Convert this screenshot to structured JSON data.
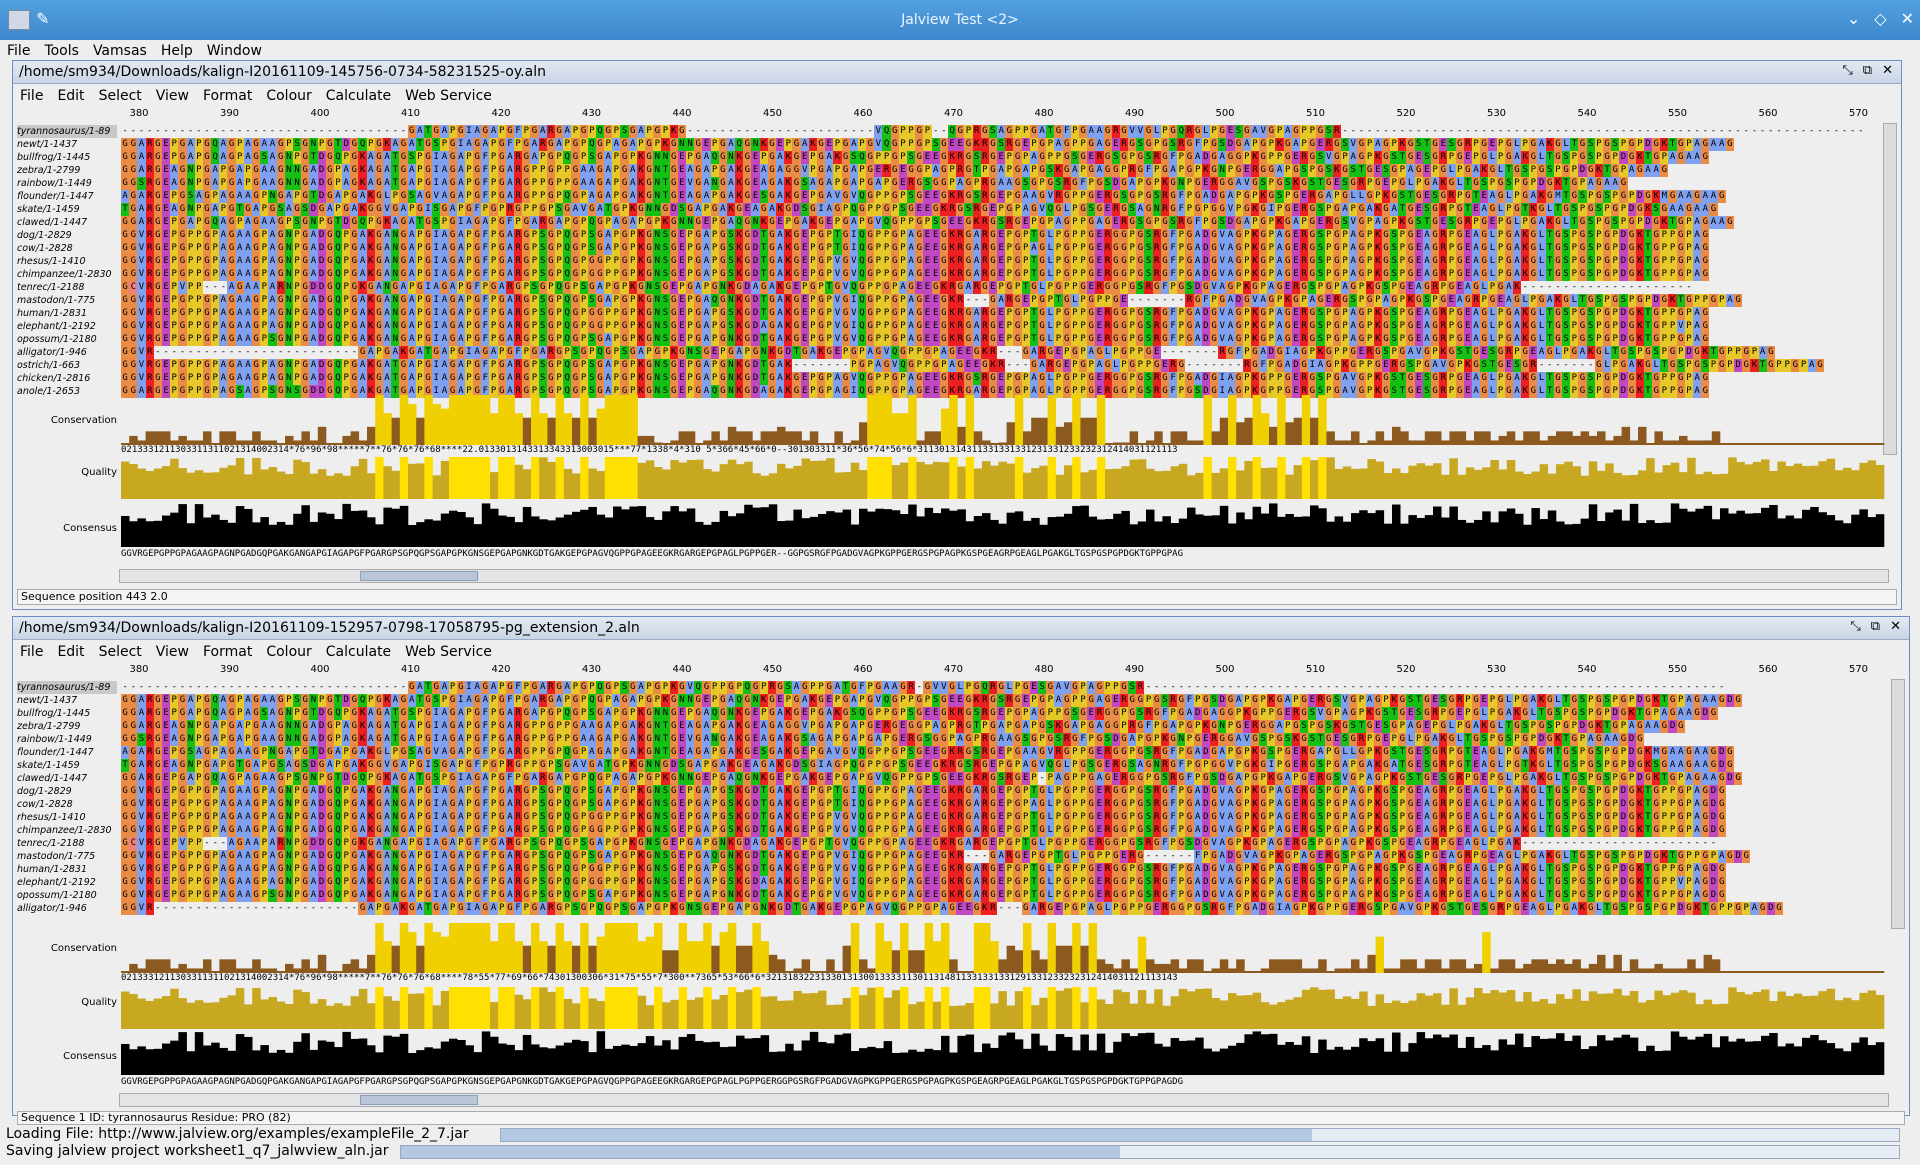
{
  "window": {
    "title": "Jalview Test <2>"
  },
  "menubar": [
    "File",
    "Tools",
    "Vamsas",
    "Help",
    "Window"
  ],
  "frame_menu": [
    "File",
    "Edit",
    "Select",
    "View",
    "Format",
    "Colour",
    "Calculate",
    "Web Service"
  ],
  "ruler_ticks": [
    "380",
    "390",
    "400",
    "410",
    "420",
    "430",
    "440",
    "450",
    "460",
    "470",
    "480",
    "490",
    "500",
    "510",
    "520",
    "530",
    "540",
    "550",
    "560",
    "570"
  ],
  "annotation_labels": {
    "conservation": "Conservation",
    "quality": "Quality",
    "consensus": "Consensus"
  },
  "colors": {
    "G": "#eb8c46",
    "P": "#e6c828",
    "A": "#80a0f0",
    "R": "#ec2020",
    "K": "#ec2020",
    "E": "#c048c0",
    "D": "#c048c0",
    "N": "#15c015",
    "Q": "#15c015",
    "S": "#15c015",
    "T": "#15c015",
    "V": "#80a0f0",
    "I": "#80a0f0",
    "L": "#80a0f0",
    "M": "#80a0f0",
    "F": "#80a0f0",
    "C": "#f08080",
    "H": "#15a4a4",
    "Y": "#15a4a4",
    "W": "#80a0f0"
  },
  "panel1": {
    "path": "/home/sm934/Downloads/kalign-I20161109-145756-0734-58231525-oy.aln",
    "names": [
      "tyrannosaurus/1-89",
      "newt/1-1437",
      "bullfrog/1-1445",
      "zebra/1-2799",
      "rainbow/1-1449",
      "flounder/1-1447",
      "skate/1-1459",
      "clawed/1-1447",
      "dog/1-2829",
      "cow/1-2828",
      "rhesus/1-1410",
      "chimpanzee/1-2830",
      "tenrec/1-2188",
      "mastodon/1-775",
      "human/1-2831",
      "elephant/1-2192",
      "opossum/1-2180",
      "alligator/1-946",
      "ostrich/1-663",
      "chicken/1-2816",
      "anole/1-2653"
    ],
    "sequences": [
      "-----------------------------------GATGAPGIAGAPGFPGARGAPGPQGPSGAPGPKG-----------------------VQGPPGP--QGPRGSAGPPGATGFPGAAGRGVVGLPGQRGLPGESGAVGPAGPPGSR----------------------------------------------------------------",
      "GGARGEPGAPGQAGPAGAAGPSGNPGTDGQPGKAGATGSPGIAGAPGFPGARGAPGPQGPAGAPGPKGNNGEPGAQGNKGEPGAKGEPGAPGVQGPPGPSGEEGKRGSRGEPGPAGPPGAGERGSGPGSRGFPGSDGAPGPKGAPGERGSVGPAGPKGSTGESGRPGEPGLPGAKGLTGSPGSPGPDGKTGPAGAAG",
      "GGARGEPGAPGQAGPAGSAGNPGTDGQPGKAGATGSPGIAGAPGFPGARGAPGPQGPSGAPGPKGNNGEPGAQGNKGEPGAKGEPGAKGSQGPPGPSGEEGKRGSRGEPGPAGPPGSGERGSGPGSRGFPGADGAGGPKGPPGERGSVGPAGPKGSTGESGRPGEPGLPGAKGLTGSPGSPGPDGKTGPAGAAG",
      "GGARGEAGNPGAPGAPGAAGNNGADGPAGKAGATGAPGIAGAPGFPGARGPPGPPGAAGAPGAKGNTGEAGAPGAKGEAGAGGVPGAPGAPGERGEGGPAGPRGTPGAPGAPGSKGAPGAGGPRGFPGAPGPKGNPGERGGAPGSPGSKGSTGESGPAGEPGLPGAKGLTGSPGSPGPDGKTGPAGAAG",
      "GGSRGEAGNPGAPGAPGAAGNNGADGPAGKAGATGAPGIAGAPGFPGARGPPGPPGAAGAPGAKGNTGEVGANGAKGEAGAKGSAGAPGAPGAPGERGSGGPAGPRGAAGSGPGSRGFPGSDGAPGPKGNPGERGGAVGSPGSKGSTGESGRPGEPGLPGAKGLTGSPGSPGPDGKTGPAGAAG",
      "AGARGEPGSAGPAGAAGPNGAPGTDGAPGAKGLPGSAGVAGAPGFPGARGPPGPQGPAGAPGAKGNTGEAGAPGAKGESGAKGEPGAVGVQGPPGPSGEEGKRGSRGEPGAAGVRGPPGERGSGPGSRGFPGADGAPGPKGSPGERGAPGLLGPKGSTGESGRPGTEAGLPGAKGMTGSPGSPGPDGKMGAAGAAG",
      "TGARGEAGNPGAPGTGAPGSAGSDGAPGAKGGVGAPGISGAPGFPGPRGPPGPSGAVGATGPKGNNGDSGAPGAKGEAGAKGDSGIAGPQGPPGPSGEEGKRGSRGEPGPAGVQGLPGSGERGSAGNRGFPGPGGVPGKGIPGERGSPGAPGAKGATGESGRPGTEAGLPGTKGLTGSPGSPGPDGKSGAAGAAG",
      "GGARGEPGAPGQAGPAGAAGPSGNPGTDGQPGKAGATGSPGIAGAPGFPGARGAPGPQGPAGAPGPKGNNGEPGAQGNKGEPGAKGEPGAPGVQGPPGPSGEEGKRGSRGEPGPAGPPGAGERGSGPGSRGFPGSDGAPGPKGAPGERGSVGPAGPKGSTGESGRPGEPGLPGAKGLTGSPGSPGPDGKTGPAGAAG",
      "GGVRGEPGPPGPAGAAGPAGNPGADGQPGAKGANGAPGIAGAPGFPGARGPSGPQGPSGAPGPKGNSGEPGAPGSKGDTGAKGEPGPTGIQGPPGPAGEEGKRGARGEPGPTGLPGPPGERGGPGSRGFPGADGVAGPKGPAGERGSPGPAGPKGSPGEAGRPGEAGLPGAKGLTGSPGSPGPDGKTGPPGPAG",
      "GGVRGEPGPPGPAGAAGPAGNPGADGQPGAKGANGAPGIAGAPGFPGARGPSGPQGPSGAPGPKGNSGEPGAPGSKGDTGAKGEPGPTGIQGPPGPAGEEGKRGARGEPGPAGLPGPPGERGGPGSRGFPGADGVAGPKGPAGERGSPGPAGPKGSPGEAGRPGEAGLPGAKGLTGSPGSPGPDGKTGPPGPAG",
      "GGVRGEPGPPGPAGAAGPAGNPGADGQPGAKGANGAPGIAGAPGFPGARGPSGPQGPGGPPGPKGNSGEPGAPGSKGDTGAKGEPGPVGVQGPPGPAGEEGKRGARGEPGPTGLPGPPGERGGPGSRGFPGADGVAGPKGPAGERGSPGPAGPKGSPGEAGRPGEAGLPGAKGLTGSPGSPGPDGKTGPPGPAG",
      "GGVRGEPGPPGPAGAAGPAGNPGADGQPGAKGANGAPGIAGAPGFPGARGPSGPQGPGGPPGPKGNSGEPGAPGSKGDTGAKGEPGPVGVQGPPGPAGEEGKRGARGEPGPTGLPGPPGERGGPGSRGFPGADGVAGPKGPAGERGSPGPAGPKGSPGEAGRPGEAGLPGAKGLTGSPGSPGPDGKTGPPGPAG",
      "GCVRGEPVPP---AGAAPARNPGDDGQPGKGANGAPGIAGAPGFPGARGPSGPQGPSGAPGPKGNSGEPGAPGNKGDAGAKGEPGPTGVQGPPGPAGEEGKRGARGEPGPTGLPGPPGERGGPGSRGFPGSDGVAGPKGPAGERGSPGPAGPKGSPGEAGRPGEAGLPGAK---------------------",
      "GGVRGEPGPPGPAGAAGPAGNPGADGQPGAKGANGAPGIAGAPGFPGARGPSGPQGPSGAPGPKGNSGEPGAQGNKGDTGAKGEPGPVGIQGPPGPAGEEGKR---GARGEPGPTGLPGPPGE-------RGFPGADGVAGPKGPAGERGSPGPAGPKGSPGEAGRPGEAGLPGAKGLTGSPGSPGPDGKTGPPGPAG",
      "GGVRGEPGPPGPAGAAGPAGNPGADGQPGAKGANGAPGIAGAPGFPGARGPSGPQGPGGPPGPKGNSGEPGAPGSKGDTGAKGEPGPVGVQGPPGPAGEEGKRGARGEPGPTGLPGPPGERGGPGSRGFPGADGVAGPKGPAGERGSPGPAGPKGSPGEAGRPGEAGLPGAKGLTGSPGSPGPDGKTGPPGPAG",
      "GGVRGEPGPPGPAGAAGPAGNPGADGQPGAKGANGAPGIAGAPGFPGARGPSGPQGPGGPPGPKGNSGEPGAPGSKGDAGAKGEPGPVGIQGPPGPAGEEGKRGARGEPGPTGLPGPPGERGGPGSRGFPGADGVAGPKGPAGERGSPGPAGPKGSPGEAGRPGEAGLPGAKGLTGSPGSPGPDGKTGPPVPAG",
      "GGVRGEPGPPGPAGAAGPSGNPGADGQPGAKGANGAPGIAGAPGFPGARGPSGPQGPSGAPGPKGNSGEPGAPGNKGDTGAKGEPGPVGVQGPPGPAGEEGKRGARGEPGPTGLPGPPGERGGPGSRGFPGADGVAGPKGPAGERGSPGPAGPKGSPGEAGRPGEAGLPGAKGLTGSPGSPGPDGKTGPPGPAG",
      "GGVR-------------------------GAPGAKGATGAPGIAGAPGFPGARGPSGPQGPSGAPGPKGNSGEPGAPGNKGDTGAKGEPGPAGVQGPPGPAGEEGKR---GARGEPGPAGLPGPPGE-------RGFPGADGIAGPKGPPGERGSPGAVGPKGSTGESGRPGEAGLPGAKGLTGSPGSPGPDGKTGPPGPAG",
      "GGVRGEPGPPGPAGAAGPAGNPGADGQPGAKGATGAPGIAGAPGFPGARGPSGPQGPSGAPGPKGNSGEPGAPGNKGDTGAK-------PGPAGVQGPPGPAGEEGKR---GARGEPGPAGLPGPPGERG-------RGFPGADGIAGPKGPPGERGSPGAVGPKGSTGESGR-------GLPGAKGLTGSPGSPGPDGKTGPPGPAG",
      "GGVRGEPGPPGPAGAAGPAGNPGADGQPGAKGATGAPGIAGAPGFPGARGPSGPQGPSGAPGPKGNSGEPGAPGNKGDTGAKGEPGPAGVQGPPGPAGEEGKRGSRGEPGPAGLPGPPGERGGPGSRGFPGADGIAGPKGPPGERGSPGAVGPKGSTGESGRPGEAGLPGAKGLTGSPGSPGPDGKTGPPGPAG",
      "GGARGEPGPPGPAGSAGPSGNSGDDGQPGAKGATGAPGIAGAPGFPGARGPSGPQGPSGAPGPKGNSGEPGAQGNKGDAGAKGEPGPAGIQGPPGPAGEEGKRGARGEPGPAGLPGPPGERGGPGSRGFPGSDGIAGPKGPPGERGSPGAVGPKGSTGESGRPGEAGLPGAKGLTGSPGSPGPDGKTGPPGPAG"
    ],
    "cons_digits": "0213331211303311311021314002314*76*96*98*****7**76*76*76*68****22.0133013143313343313003015***77*1338*4*310 5*366*45*66*0--301303311*36*56*74*56*6*311301314311331331331231331233232312414031121113",
    "consensus": "GGVRGEPGPPGPAGAAGPAGNPGADGQPGAKGANGAPGIAGAPGFPGARGPSGPQGPSGAPGPKGNSGEPGAPGNKGDTGAKGEPGPAGVQGPPGPAGEEGKRGARGEPGPAGLPGPPGER--GGPGSRGFPGADGVAGPKGPPGERGSPGPAGPKGSPGEAGRPGEAGLPGAKGLTGSPGSPGPDGKTGPPGPAG",
    "tooltip": "2.0",
    "status": "Sequence position 443  2.0"
  },
  "panel2": {
    "path": "/home/sm934/Downloads/kalign-I20161109-152957-0798-17058795-pg_extension_2.aln",
    "names": [
      "tyrannosaurus/1-89",
      "newt/1-1437",
      "bullfrog/1-1445",
      "zebra/1-2799",
      "rainbow/1-1449",
      "flounder/1-1447",
      "skate/1-1459",
      "clawed/1-1447",
      "dog/1-2829",
      "cow/1-2828",
      "rhesus/1-1410",
      "chimpanzee/1-2830",
      "tenrec/1-2188",
      "mastodon/1-775",
      "human/1-2831",
      "elephant/1-2192",
      "opossum/1-2180",
      "alligator/1-946"
    ],
    "sequences": [
      "-----------------------------------GATGAPGIAGAPGFPGARGAPGPQGPSGAPGPKGVQGPPGPQGPRGSAGPPGATGFPGAAGR-GVVGLPGQRGLPGESGAVGPAGPPGSR-----------------------------------------------------------------------",
      "GGARGEPGAPGQAGPAGAAGPSGNPGTDGQPGKAGATGSPGIAGAPGFPGARGAPGPQGPAGAPGPKGNNGEPGAQGNKGEPGAKGEPGAPGVQGPPGPSGEEGKRGSRGEPGPAGPPGAGERGGPGSRGFPGSDGAPGPKGAPGERGSVGPAGPKGSTGESGRPGEPGLPGAKGLTGSPGSPGPDGKTGPAGAAGDG",
      "GGARGEPGAPGQAGPAGSAGNPGTDGQPGKAGATGSPGIAGAPGFPGARGAPGPQGPSGAPGPKGNNGEPGAQGNKGEPGAKGEPGAKGSQGPPGPSGEEGKRGSRGEPGPAGPPGSGERGGPGSRGFPGADGAGGPKGPPGERGSVGPAGPKGSTGESGRPGEPGLPGAKGLTGSPGSPGPDGKTGPAGAAGDG",
      "GGARGEAGNPGAPGAPGAAGNNGADGPAGKAGATGAPGIAGAPGFPGARGPPGPPGAAGAPGAKGNTGEAGAPGAKGEAGAGGVPGAPGAPGERGEGGPAGPRGTPGAPGAPGSKGAPGAGGPRGFPGAPGPKGNPGERGGAPGSPGSKGSTGESGPAGEPGLPGAKGLTGSPGSPGPDGKTGPAGAAGDG",
      "GGSRGEAGNPGAPGAPGAAGNNGADGPAGKAGATGAPGIAGAPGFPGARGPPGPPGAAGAPGAKGNTGEVGANGAKGEAGAKGSAGAPGAPGAPGERGSGGPAGPRGAAGSGPGSRGFPGSDGAPGPKGNPGERGGAVGSPGSKGSTGESGRPGEPGLPGAKGLTGSPGSPGPDGKTGPAGAAGDG",
      "AGARGEPGSAGPAGAAGPNGAPGTDGAPGAKGLPGSAGVAGAPGFPGARGPPGPQGPAGAPGAKGNTGEAGAPGAKGESGAKGEPGAVGVQGPPGPSGEEGKRGSRGEPGAAGVRGPPGERGGPGSRGFPGADGAPGPKGSPGERGAPGLLGPKGSTGESGRPGTEAGLPGAKGMTGSPGSPGPDGKMGAAGAAGDG",
      "TGARGEAGNPGAPGTGAPGSAGSDGAPGAKGGVGAPGISGAPGFPGPRGPPGPSGAVGATGPKGNNGDSGAPGAKGEAGAKGDSGIAGPQGPPGPSGEEGKRGSRGEPGPAGVQGLPGSGERGSAGNRGFPGPGGVPGKGIPGERGSPGAPGAKGATGESGRPGTEAGLPGTKGLTGSPGSPGPDGKSGAAGAAGDG",
      "GGARGEPGAPGQAGPAGAAGPSGNPGTDGQPGKAGATGSPGIAGAPGFPGARGAPGPQGPAGAPGPKGNNGEPGAQGNKGEPGAKGEPGAPGVQGPPGPSGEEGKRGSRGEP-PAGPPGAGERGGPGSRGFPGSDGAPGPKGAPGERGSVGPAGPKGSTGESGRPGEPGLPGAKGLTGSPGSPGPDGKTGPAGAAGDG",
      "GGVRGEPGPPGPAGAAGPAGNPGADGQPGAKGANGAPGIAGAPGFPGARGPSGPQGPSGAPGPKGNSGEPGAPGSKGDTGAKGEPGPTGIQGPPGPAGEEGKRGARGEPGPTGLPGPPGERGGPGSRGFPGADGVAGPKGPAGERGSPGPAGPKGSPGEAGRPGEAGLPGAKGLTGSPGSPGPDGKTGPPGPAGDG",
      "GGVRGEPGPPGPAGAAGPAGNPGADGQPGAKGANGAPGIAGAPGFPGARGPSGPQGPSGAPGPKGNSGEPGAPGSKGDTGAKGEPGPTGIQGPPGPAGEEGKRGARGEPGPAGLPGPPGERGGPGSRGFPGADGVAGPKGPAGERGSPGPAGPKGSPGEAGRPGEAGLPGAKGLTGSPGSPGPDGKTGPPGPAGDG",
      "GGVRGEPGPPGPAGAAGPAGNPGADGQPGAKGANGAPGIAGAPGFPGARGPSGPQGPGGPPGPKGNSGEPGAPGSKGDTGAKGEPGPVGVQGPPGPAGEEGKRGARGEPGPTGLPGPPGERGGPGSRGFPGADGVAGPKGPAGERGSPGPAGPKGSPGEAGRPGEAGLPGAKGLTGSPGSPGPDGKTGPPGPAGDG",
      "GGVRGEPGPPGPAGAAGPAGNPGADGQPGAKGANGAPGIAGAPGFPGARGPSGPQGPGGPPGPKGNSGEPGAPGSKGDTGAKGEPGPVGVQGPPGPAGEEGKRGARGEPGPTGLPGPPGERGGPGSRGFPGADGVAGPKGPAGERGSPGPAGPKGSPGEAGRPGEAGLPGAKGLTGSPGSPGPDGKTGPPGPAGDG",
      "GCVRGEPVPP---AGAAPARNPGDDGQPGKGANGAPGIAGAPGFPGARGPSGPQGPSGAPGPKGNSGEPGAPGNKGDAGAKGEPGPTGVQGPPGPAGEEGKRGARGEPGPTGLPGPPGERGGPGSRGFPGSDGVAGPKGPAGERGSPGPAGPKGSPGEAGRPGEAGLPGAK------------------------",
      "GGVRGEPGPPGPAGAAGPAGNPGADGQPGAKGANGAPGIAGAPGFPGARGPSGPQGPSGAPGPKGNSGEPGAQGNKGDTGAKGEPGPVGIQGPPGPAGEEGKR---GARGEPGPTGLPGPPGERG------FPGADGVAGPKGPAGERGSPGPAGPKGSPGEAGRPGEAGLPGAKGLTGSPGSPGPDGKTGPPGPAGDG",
      "GGVRGEPGPPGPAGAAGPAGNPGADGQPGAKGANGAPGIAGAPGFPGARGPSGPQGPGGPPGPKGNSGEPGAPGSKGDTGAKGEPGPVGVQGPPGPAGEEGKRGARGEPGPTGLPGPPGERGGPGSRGFPGADGVAGPKGPAGERGSPGPAGPKGSPGEAGRPGEAGLPGAKGLTGSPGSPGPDGKTGPPGPAGDG",
      "GGVRGEPGPPGPAGAAGPAGNPGADGQPGAKGANGAPGIAGAPGFPGARGPSGPQGPGGPPGPKGNSGEPGAPGSKGDAGAKGEPGPVGIQGPPGPAGEEGKRGARGEPGPTGLPGPPGERGGPGSRGFPGADGVAGPKGPAGERGSPGPAGPKGSPGEAGRPGEAGLPGAKGLTGSPGSPGPDGKTGPPVPAGDG",
      "GGVRGEPGPPGPAGAAGPSGNPGADGQPGAKGANGAPGIAGAPGFPGARGPSGPQGPSGAPGPKGNSGEPGAPGNKGDTGAKGEPGPVGVQGPPGPAGEEGKRGARGEPGPTGLPGPPGERGGPGSRGFPGADGVAGPKGPAGERGSPGPAGPKGSPGEAGRPGEAGLPGAKGLTGSPGSPGPDGKTGPPGPAGDG",
      "GGVR-------------------------GAPGAKGATGAPGIAGAPGFPGARGPSGPQGPSGAPGPKGNSGEPGAPGNKGDTGAKGEPGPAGVQGPPGPAGEEGKR---GARGEPGPAGLPGPPGERGGPGSRGFPGADGIAGPKGPPGERGSPGAVGPKGSTGESGRPGEAGLPGAKGLTGSPGSPGPDGKTGPPGPAGDG"
    ],
    "cons_digits": "0213331211303311311021314002314*76*96*98*****7**76*76*76*68****78*55*77*69*66*74301300306*31*75*55*7*300**7365*53*66*6*3213183223133013130013333113011314811331331331291331233232312414031121113143",
    "consensus": "GGVRGEPGPPGPAGAAGPAGNPGADGQPGAKGANGAPGIAGAPGFPGARGPSGPQGPSGAPGPKGNSGEPGAPGNKGDTGAKGEPGPAGVQGPPGPAGEEGKRGARGEPGPAGLPGPPGERGGPGSRGFPGADGVAGPKGPPGERGSPGPAGPKGSPGEAGRPGEAGLPGAKGLTGSPGSPGPDGKTGPPGPAGDG",
    "status": "Sequence 1 ID: tyrannosaurus  Residue: PRO (82)"
  },
  "footer": {
    "line1": "Loading File: http://www.jalview.org/examples/exampleFile_2_7.jar",
    "line2": "Saving jalview project worksheet1_q7_jalwview_aln.jar",
    "progress1": 0.58,
    "progress2": 0.48
  }
}
